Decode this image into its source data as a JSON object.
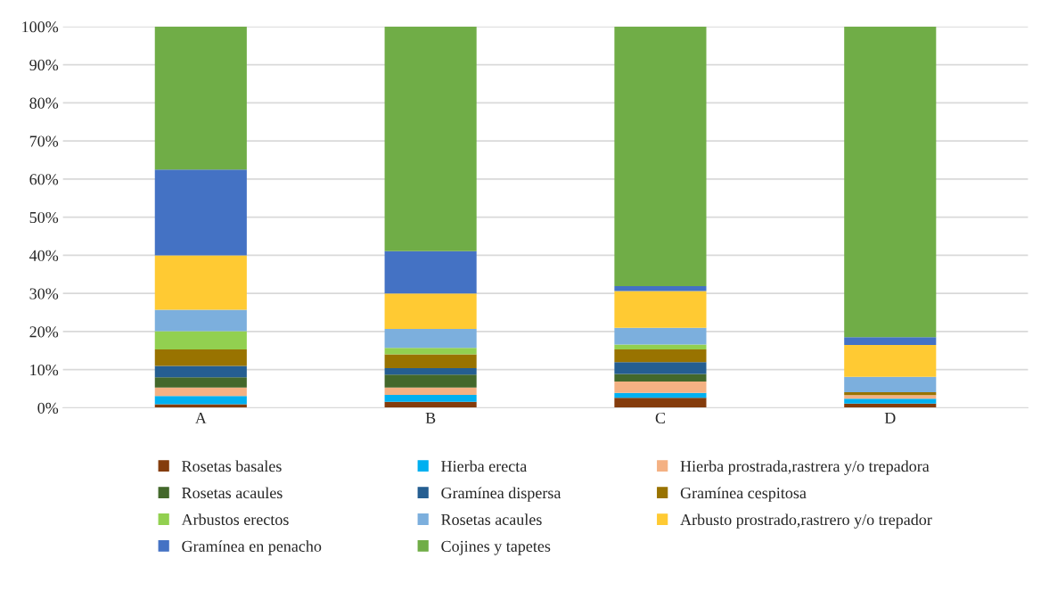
{
  "chart_data": {
    "type": "bar",
    "stacked": true,
    "categories": [
      "A",
      "B",
      "C",
      "D"
    ],
    "ylim": [
      0,
      100
    ],
    "yticks": [
      {
        "value": 0,
        "label": "0%"
      },
      {
        "value": 10,
        "label": "10%"
      },
      {
        "value": 20,
        "label": "20%"
      },
      {
        "value": 30,
        "label": "30%"
      },
      {
        "value": 40,
        "label": "40%"
      },
      {
        "value": 50,
        "label": "50%"
      },
      {
        "value": 60,
        "label": "60%"
      },
      {
        "value": 70,
        "label": "70%"
      },
      {
        "value": 80,
        "label": "80%"
      },
      {
        "value": 90,
        "label": "90%"
      },
      {
        "value": 100,
        "label": "100%"
      }
    ],
    "grid": "y",
    "legend": "bottom",
    "series": [
      {
        "name": "Rosetas basales",
        "color": "#843c0c",
        "values": [
          0.9,
          1.6,
          2.6,
          1.1
        ]
      },
      {
        "name": "Hierba erecta",
        "color": "#00b0f0",
        "values": [
          2.2,
          1.8,
          1.3,
          1.3
        ]
      },
      {
        "name": "Hierba prostrada,rastrera y/o trepadora",
        "color": "#f4b183",
        "values": [
          2.2,
          1.9,
          3.0,
          0.9
        ]
      },
      {
        "name": "Rosetas acaules",
        "color": "#43682b",
        "values": [
          2.7,
          3.4,
          2.0,
          null
        ]
      },
      {
        "name": "Gramínea dispersa",
        "color": "#255e91",
        "values": [
          3.0,
          1.7,
          3.1,
          0
        ]
      },
      {
        "name": "Gramínea cespitosa",
        "color": "#997300",
        "values": [
          4.3,
          3.6,
          3.3,
          0.8
        ]
      },
      {
        "name": "Arbustos erectos",
        "color": "#92d050",
        "values": [
          4.8,
          1.7,
          1.3,
          0
        ]
      },
      {
        "name": "Rosetas acaules",
        "color": "#7cafdd",
        "values": [
          5.6,
          5.0,
          4.4,
          4.0
        ]
      },
      {
        "name": "Arbusto prostrado,rastrero y/o trepador",
        "color": "#ffca33",
        "values": [
          14.3,
          9.3,
          9.6,
          8.4
        ]
      },
      {
        "name": "Gramínea en penacho",
        "color": "#4472c4",
        "values": [
          22.5,
          11.1,
          1.3,
          2.0
        ]
      },
      {
        "name": "Cojines y tapetes",
        "color": "#70ad47",
        "values": [
          37.5,
          58.9,
          68.1,
          81.5
        ]
      }
    ]
  }
}
